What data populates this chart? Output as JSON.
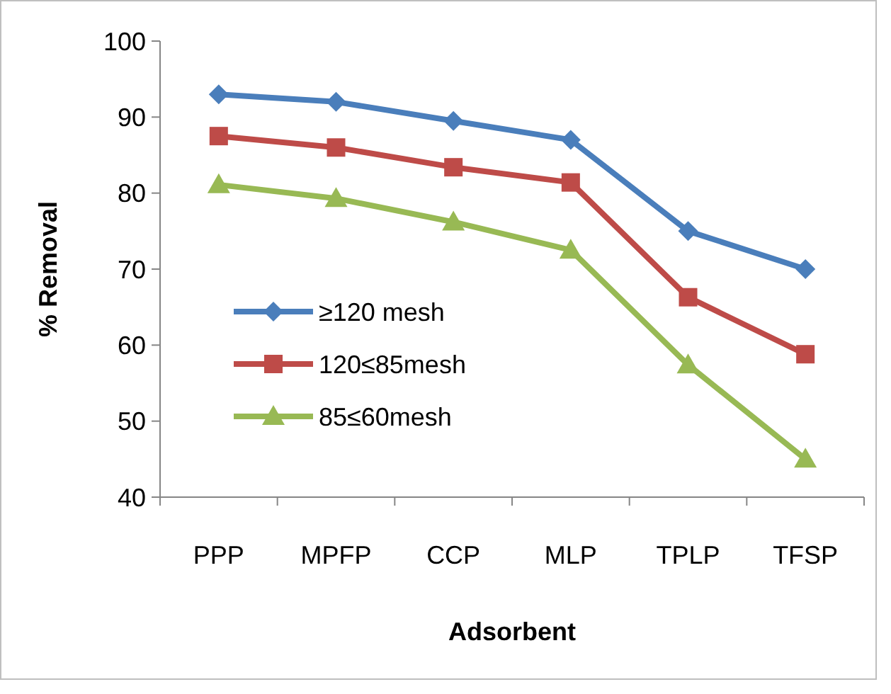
{
  "chart_data": {
    "type": "line",
    "xlabel": "Adsorbent",
    "ylabel": "% Removal",
    "categories": [
      "PPP",
      "MPFP",
      "CCP",
      "MLP",
      "TPLP",
      "TFSP"
    ],
    "series": [
      {
        "name": "≥120 mesh",
        "color": "#4a7ebb",
        "marker": "diamond",
        "values": [
          93,
          92,
          89.5,
          87,
          75,
          70
        ]
      },
      {
        "name": "120≤85mesh",
        "color": "#be4b48",
        "marker": "square",
        "values": [
          87.5,
          86,
          83.4,
          81.4,
          66.3,
          58.8
        ]
      },
      {
        "name": "85≤60mesh",
        "color": "#98b954",
        "marker": "triangle",
        "values": [
          81.1,
          79.3,
          76.2,
          72.5,
          57.4,
          45
        ]
      }
    ],
    "ylim": [
      40,
      100
    ],
    "yticks": [
      40,
      50,
      60,
      70,
      80,
      90,
      100
    ],
    "grid": false,
    "legend": "left"
  }
}
